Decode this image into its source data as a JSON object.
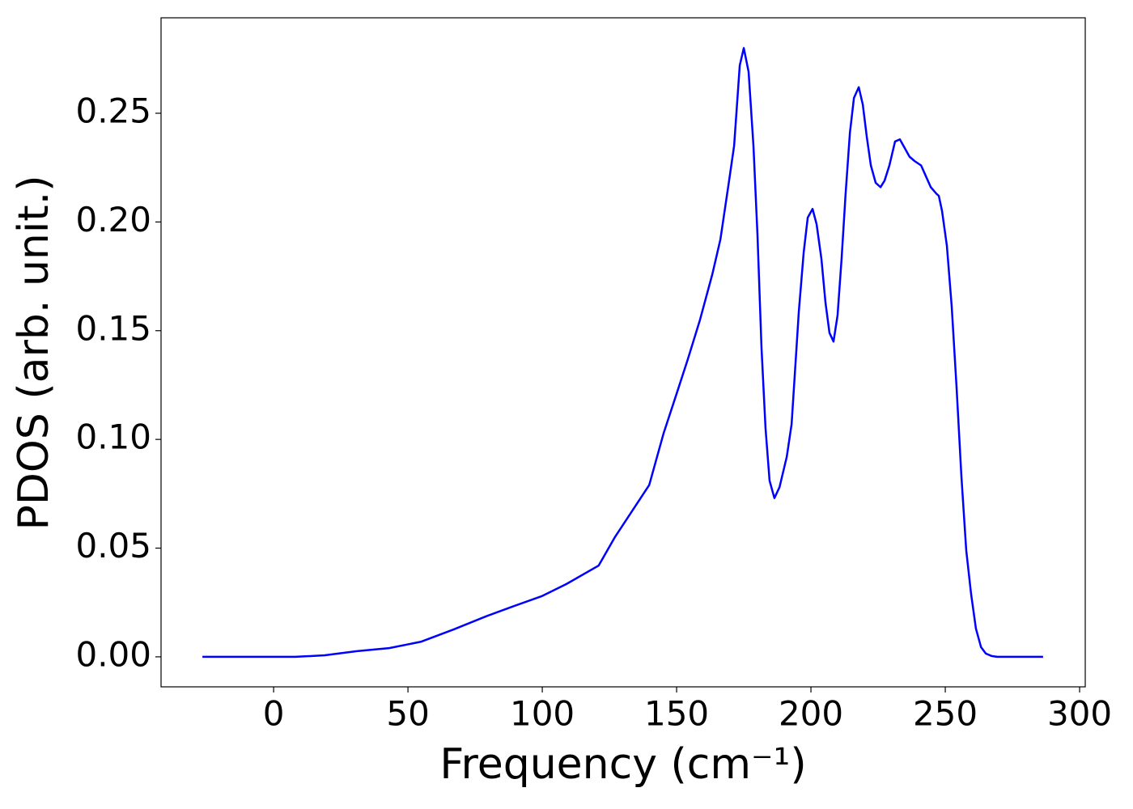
{
  "chart_data": {
    "type": "line",
    "xlabel": "Frequency (cm⁻¹)",
    "ylabel": "PDOS (arb. unit.)",
    "xlim": [
      -41.9,
      302.1
    ],
    "ylim": [
      -0.0138,
      0.2939
    ],
    "xticks": [
      0,
      50,
      100,
      150,
      200,
      250,
      300
    ],
    "yticks": [
      {
        "value": 0,
        "label": "0.00"
      },
      {
        "value": 0.05,
        "label": "0.05"
      },
      {
        "value": 0.1,
        "label": "0.10"
      },
      {
        "value": 0.15,
        "label": "0.15"
      },
      {
        "value": 0.2,
        "label": "0.20"
      },
      {
        "value": 0.25,
        "label": "0.25"
      }
    ],
    "series": [
      {
        "color": "#0000ff",
        "x": [
          -26.5,
          8,
          19,
          31,
          43,
          55,
          67,
          79,
          88,
          100,
          109,
          121,
          127,
          139.8,
          145.2,
          150,
          154.2,
          158.7,
          163.3,
          166.3,
          169.3,
          171.4,
          173.5,
          175,
          176.8,
          178.6,
          180.1,
          181.6,
          183.1,
          184.6,
          186.4,
          188.3,
          191,
          192.8,
          195.5,
          197.3,
          198.8,
          200.6,
          202.1,
          203.9,
          205.4,
          206.9,
          208.4,
          209.9,
          211.4,
          212.9,
          214.5,
          216,
          217.8,
          219.3,
          220.8,
          222.3,
          224.1,
          225.9,
          227.4,
          229.2,
          231.3,
          233.1,
          234.9,
          236.7,
          238.6,
          241,
          242.8,
          244.6,
          246.7,
          247.6,
          248.8,
          250.6,
          252.4,
          254.2,
          256,
          257.8,
          259.6,
          261.4,
          263.3,
          265.1,
          267.2,
          269.3,
          286.4
        ],
        "values": [
          0,
          0,
          0.0007,
          0.0026,
          0.004,
          0.007,
          0.0126,
          0.0186,
          0.0227,
          0.028,
          0.0335,
          0.042,
          0.055,
          0.079,
          0.103,
          0.121,
          0.137,
          0.155,
          0.176,
          0.192,
          0.217,
          0.235,
          0.272,
          0.28,
          0.269,
          0.235,
          0.194,
          0.142,
          0.105,
          0.081,
          0.073,
          0.078,
          0.092,
          0.107,
          0.159,
          0.186,
          0.202,
          0.206,
          0.199,
          0.183,
          0.163,
          0.149,
          0.145,
          0.157,
          0.183,
          0.213,
          0.241,
          0.257,
          0.262,
          0.254,
          0.239,
          0.226,
          0.218,
          0.216,
          0.219,
          0.226,
          0.237,
          0.238,
          0.234,
          0.23,
          0.228,
          0.226,
          0.221,
          0.216,
          0.213,
          0.212,
          0.205,
          0.189,
          0.161,
          0.124,
          0.083,
          0.049,
          0.029,
          0.013,
          0.0045,
          0.0015,
          0.0004,
          0,
          0
        ]
      }
    ]
  }
}
